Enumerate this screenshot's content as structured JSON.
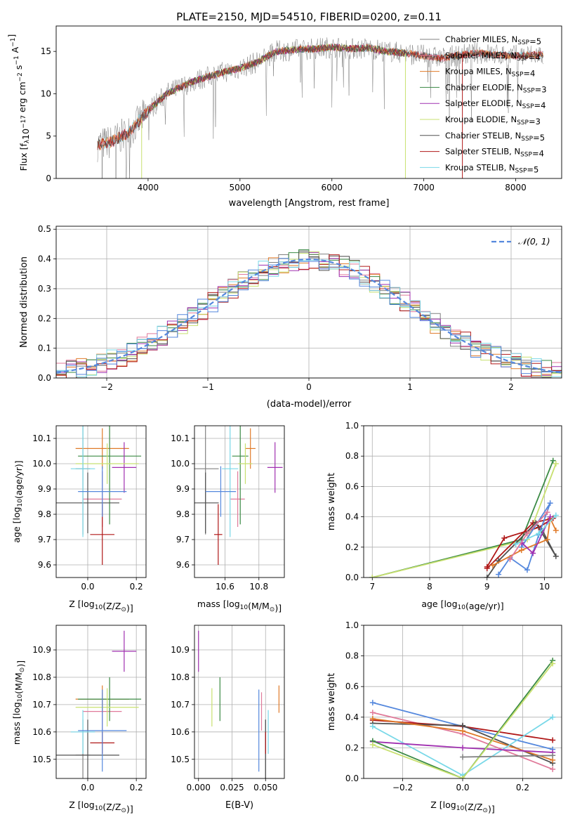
{
  "figure_title": "PLATE=2150, MJD=54510, FIBERID=0200, z=0.11",
  "colors": {
    "Chabrier MILES": "#808080",
    "Salpeter MILES": "#e07a9a",
    "Kroupa MILES": "#e07b2a",
    "Chabrier ELODIE": "#3a8a44",
    "Salpeter ELODIE": "#a030b0",
    "Kroupa ELODIE": "#c8e070",
    "Chabrier STELIB": "#505050",
    "Salpeter STELIB": "#b01818",
    "Kroupa STELIB": "#78d8e8",
    "blue": "#5588dd",
    "grid": "#b0b0b0"
  },
  "chart_data": [
    {
      "id": "spectrum",
      "type": "line",
      "xlabel": "wavelength [Angstrom, rest frame]",
      "ylabel": "Flux [f",
      "ylabel_sub": "λ",
      "ylabel_mid": "10",
      "ylabel_sup": "−17",
      "ylabel_end": " erg cm",
      "ylabel_sup2": "−2",
      "ylabel_end2": " s",
      "ylabel_sup3": "−1",
      "ylabel_end3": " A",
      "ylabel_sup4": "−1",
      "ylabel_close": "]",
      "xlim": [
        3000,
        8500
      ],
      "ylim": [
        0,
        18
      ],
      "xticks": [
        "4000",
        "5000",
        "6000",
        "7000",
        "8000"
      ],
      "xtick_values": [
        4000,
        5000,
        6000,
        7000,
        8000
      ],
      "yticks": [
        "0",
        "5",
        "10",
        "15"
      ],
      "ytick_values": [
        0,
        5,
        10,
        15
      ],
      "continuum": {
        "x": [
          3450,
          3600,
          3800,
          4000,
          4200,
          4500,
          4800,
          5000,
          5200,
          5400,
          5600,
          5800,
          6000,
          6200,
          6400,
          6600,
          6800,
          7000,
          7200,
          7400,
          7600,
          7800,
          8000,
          8200,
          8300
        ],
        "y": [
          4.0,
          4.3,
          5.5,
          8.0,
          10.0,
          11.5,
          12.5,
          13.0,
          13.8,
          15.0,
          15.2,
          15.3,
          15.5,
          15.3,
          15.4,
          15.0,
          14.8,
          14.5,
          14.2,
          14.6,
          14.8,
          14.6,
          14.5,
          14.6,
          14.6
        ]
      },
      "legend": [
        {
          "label": "Chabrier MILES, N",
          "sub": "SSP",
          "tail": "=5"
        },
        {
          "label": "Salpeter MILES, N",
          "sub": "SSP",
          "tail": "=4"
        },
        {
          "label": "Kroupa MILES, N",
          "sub": "SSP",
          "tail": "=4"
        },
        {
          "label": "Chabrier ELODIE, N",
          "sub": "SSP",
          "tail": "=3"
        },
        {
          "label": "Salpeter ELODIE, N",
          "sub": "SSP",
          "tail": "=4"
        },
        {
          "label": "Kroupa ELODIE, N",
          "sub": "SSP",
          "tail": "=3"
        },
        {
          "label": "Chabrier STELIB, N",
          "sub": "SSP",
          "tail": "=5"
        },
        {
          "label": "Salpeter STELIB, N",
          "sub": "SSP",
          "tail": "=4"
        },
        {
          "label": "Kroupa STELIB, N",
          "sub": "SSP",
          "tail": "=5"
        }
      ]
    },
    {
      "id": "residuals",
      "type": "step",
      "xlabel": "(data-model)/error",
      "ylabel": "Normed distribution",
      "xlim": [
        -2.5,
        2.5
      ],
      "ylim": [
        0,
        0.51
      ],
      "xticks": [
        "−2",
        "−1",
        "0",
        "1",
        "2"
      ],
      "xtick_values": [
        -2,
        -1,
        0,
        1,
        2
      ],
      "yticks": [
        "0.0",
        "0.1",
        "0.2",
        "0.3",
        "0.4",
        "0.5"
      ],
      "ytick_values": [
        0,
        0.1,
        0.2,
        0.3,
        0.4,
        0.5
      ],
      "legend_label": "𝒩(0, 1)",
      "bin_width": 0.1,
      "bin_start": -2.5
    },
    {
      "id": "age_vs_Z",
      "type": "errorbar",
      "xlabel": "Z [log",
      "xlabel_sub": "10",
      "xlabel_tail": "(Z/Z",
      "xlabel_sub2": "⊙",
      "xlabel_close": ")]",
      "ylabel": "age  [log",
      "ylabel_sub": "10",
      "ylabel_tail": "(age/yr)]",
      "xlim": [
        -0.13,
        0.24
      ],
      "ylim": [
        9.55,
        10.15
      ],
      "xticks": [
        "0.0",
        "0.2"
      ],
      "xtick_values": [
        0.0,
        0.2
      ],
      "yticks": [
        "9.6",
        "9.7",
        "9.8",
        "9.9",
        "10.0",
        "10.1"
      ],
      "ytick_values": [
        9.6,
        9.7,
        9.8,
        9.9,
        10.0,
        10.1
      ]
    },
    {
      "id": "age_vs_mass",
      "type": "errorbar",
      "xlabel": "mass [log",
      "xlabel_sub": "10",
      "xlabel_tail": "(M/M",
      "xlabel_sub2": "⊙",
      "xlabel_close": ")]",
      "xlim": [
        10.42,
        10.95
      ],
      "ylim": [
        9.55,
        10.15
      ],
      "xticks": [
        "10.6",
        "10.8"
      ],
      "xtick_values": [
        10.6,
        10.8
      ],
      "yticks": [
        "9.6",
        "9.7",
        "9.8",
        "9.9",
        "10.0",
        "10.1"
      ],
      "ytick_values": [
        9.6,
        9.7,
        9.8,
        9.9,
        10.0,
        10.1
      ]
    },
    {
      "id": "weight_vs_age",
      "type": "line",
      "xlabel": "age  [log",
      "xlabel_sub": "10",
      "xlabel_tail": "(age/yr)]",
      "ylabel": "mass weight",
      "xlim": [
        6.85,
        10.3
      ],
      "ylim": [
        0,
        1.0
      ],
      "xticks": [
        "7",
        "8",
        "9",
        "10"
      ],
      "xtick_values": [
        7,
        8,
        9,
        10
      ],
      "yticks": [
        "0.0",
        "0.2",
        "0.4",
        "0.6",
        "0.8",
        "1.0"
      ],
      "ytick_values": [
        0,
        0.2,
        0.4,
        0.6,
        0.8,
        1.0
      ]
    },
    {
      "id": "mass_vs_Z",
      "type": "errorbar",
      "xlabel": "Z [log",
      "xlabel_sub": "10",
      "xlabel_tail": "(Z/Z",
      "xlabel_sub2": "⊙",
      "xlabel_close": ")]",
      "ylabel": "mass [log",
      "ylabel_sub": "10",
      "ylabel_tail": "(M/M",
      "ylabel_sub2": "⊙",
      "ylabel_close": ")]",
      "xlim": [
        -0.13,
        0.24
      ],
      "ylim": [
        10.43,
        10.99
      ],
      "xticks": [
        "0.0",
        "0.2"
      ],
      "xtick_values": [
        0.0,
        0.2
      ],
      "yticks": [
        "10.5",
        "10.6",
        "10.7",
        "10.8",
        "10.9"
      ],
      "ytick_values": [
        10.5,
        10.6,
        10.7,
        10.8,
        10.9
      ]
    },
    {
      "id": "mass_vs_ebv",
      "type": "errorbar",
      "xlabel": "E(B-V)",
      "xlim": [
        -0.003,
        0.064
      ],
      "ylim": [
        10.43,
        10.99
      ],
      "xticks": [
        "0.000",
        "0.025",
        "0.050"
      ],
      "xtick_values": [
        0.0,
        0.025,
        0.05
      ],
      "yticks": [
        "10.5",
        "10.6",
        "10.7",
        "10.8",
        "10.9"
      ],
      "ytick_values": [
        10.5,
        10.6,
        10.7,
        10.8,
        10.9
      ]
    },
    {
      "id": "weight_vs_Z",
      "type": "line",
      "xlabel": "Z [log",
      "xlabel_sub": "10",
      "xlabel_tail": "(Z/Z",
      "xlabel_sub2": "⊙",
      "xlabel_close": ")]",
      "ylabel": "mass weight",
      "xlim": [
        -0.33,
        0.33
      ],
      "ylim": [
        0,
        1.0
      ],
      "xticks": [
        "−0.2",
        "0.0",
        "0.2"
      ],
      "xtick_values": [
        -0.2,
        0.0,
        0.2
      ],
      "yticks": [
        "0.0",
        "0.2",
        "0.4",
        "0.6",
        "0.8",
        "1.0"
      ],
      "ytick_values": [
        0,
        0.2,
        0.4,
        0.6,
        0.8,
        1.0
      ]
    }
  ],
  "ssp_fits": [
    {
      "model": "Chabrier MILES",
      "Z": [
        -0.02,
        0.03
      ],
      "age": [
        9.98,
        0.26
      ],
      "mass": [
        10.515,
        0.13
      ],
      "mass_err_Z": [
        0.56,
        10.555
      ],
      "ebv": 0.05
    },
    {
      "model": "Salpeter MILES",
      "Z": [
        0.06,
        0.08
      ],
      "age": [
        9.86,
        0.11
      ],
      "mass": [
        10.675,
        0.07
      ],
      "ebv": 0.047
    },
    {
      "model": "Kroupa MILES",
      "Z": [
        0.06,
        0.11
      ],
      "age": [
        10.06,
        0.08
      ],
      "mass": [
        10.72,
        0.05
      ],
      "ebv": 0.06
    },
    {
      "model": "Chabrier ELODIE",
      "Z": [
        0.09,
        0.13
      ],
      "age": [
        10.03,
        0.27
      ],
      "mass": [
        10.72,
        0.08
      ],
      "ebv": 0.016
    },
    {
      "model": "Salpeter ELODIE",
      "Z": [
        0.15,
        0.05
      ],
      "age": [
        9.985,
        0.1
      ],
      "mass": [
        10.895,
        0.075
      ],
      "ebv": 0.0
    },
    {
      "model": "Kroupa ELODIE",
      "Z": [
        0.08,
        0.13
      ],
      "age": [
        10.0,
        0.08
      ],
      "mass": [
        10.69,
        0.07
      ],
      "ebv": 0.01
    },
    {
      "model": "Chabrier STELIB",
      "Z": [
        0.0,
        0.13
      ],
      "age": [
        9.845,
        0.12
      ],
      "mass": [
        10.515,
        0.13
      ],
      "ebv": 0.05
    },
    {
      "model": "Salpeter STELIB",
      "Z": [
        0.06,
        0.05
      ],
      "age": [
        9.72,
        0.12
      ],
      "mass": [
        10.56,
        0.04
      ],
      "ebv": 0.05
    },
    {
      "model": "Kroupa STELIB",
      "Z": [
        -0.02,
        0.05
      ],
      "age": [
        9.98,
        0.27
      ],
      "mass": [
        10.6,
        0.08
      ],
      "ebv": 0.052
    },
    {
      "model": "blue",
      "Z": [
        0.06,
        0.1
      ],
      "age": [
        9.89,
        0.1
      ],
      "mass": [
        10.605,
        0.15
      ],
      "ebv": 0.045
    }
  ],
  "weights_age": [
    {
      "model": "Chabrier ELODIE",
      "points": [
        [
          7.0,
          0.0
        ],
        [
          9.6,
          0.25
        ],
        [
          10.15,
          0.77
        ]
      ]
    },
    {
      "model": "Kroupa ELODIE",
      "points": [
        [
          7.0,
          0.0
        ],
        [
          9.7,
          0.25
        ],
        [
          10.2,
          0.75
        ]
      ]
    },
    {
      "model": "Salpeter STELIB",
      "points": [
        [
          9.0,
          0.07
        ],
        [
          9.3,
          0.26
        ],
        [
          9.9,
          0.33
        ],
        [
          10.15,
          0.39
        ],
        [
          9.8,
          0.36
        ],
        [
          9.0,
          0.06
        ]
      ]
    },
    {
      "model": "Chabrier STELIB",
      "points": [
        [
          9.0,
          0.0
        ],
        [
          9.2,
          0.11
        ],
        [
          9.85,
          0.36
        ],
        [
          10.2,
          0.14
        ],
        [
          9.95,
          0.32
        ]
      ]
    },
    {
      "model": "blue",
      "points": [
        [
          9.2,
          0.02
        ],
        [
          9.4,
          0.13
        ],
        [
          9.7,
          0.05
        ],
        [
          9.9,
          0.28
        ],
        [
          10.1,
          0.49
        ],
        [
          9.6,
          0.2
        ]
      ]
    },
    {
      "model": "Kroupa MILES",
      "points": [
        [
          9.1,
          0.08
        ],
        [
          9.6,
          0.18
        ],
        [
          10.05,
          0.25
        ],
        [
          10.1,
          0.39
        ],
        [
          10.2,
          0.31
        ]
      ]
    },
    {
      "model": "Salpeter ELODIE",
      "points": [
        [
          9.6,
          0.23
        ],
        [
          9.8,
          0.16
        ],
        [
          10.1,
          0.4
        ]
      ]
    },
    {
      "model": "Kroupa STELIB",
      "points": [
        [
          9.5,
          0.22
        ],
        [
          9.9,
          0.29
        ],
        [
          10.2,
          0.41
        ]
      ]
    },
    {
      "model": "Salpeter MILES",
      "points": [
        [
          9.4,
          0.12
        ],
        [
          9.7,
          0.29
        ],
        [
          10.05,
          0.43
        ]
      ]
    }
  ],
  "weights_Z": [
    {
      "model": "blue",
      "points": [
        [
          -0.3,
          0.495
        ],
        [
          0.0,
          0.34
        ],
        [
          0.3,
          0.19
        ]
      ]
    },
    {
      "model": "Salpeter MILES",
      "points": [
        [
          -0.3,
          0.43
        ],
        [
          0.0,
          0.29
        ],
        [
          0.3,
          0.06
        ]
      ]
    },
    {
      "model": "Salpeter STELIB",
      "points": [
        [
          -0.3,
          0.38
        ],
        [
          0.0,
          0.34
        ],
        [
          0.3,
          0.25
        ]
      ]
    },
    {
      "model": "Chabrier STELIB",
      "points": [
        [
          -0.3,
          0.36
        ],
        [
          0.0,
          0.345
        ],
        [
          0.3,
          0.1
        ]
      ]
    },
    {
      "model": "Kroupa MILES",
      "points": [
        [
          -0.3,
          0.39
        ],
        [
          0.0,
          0.31
        ],
        [
          0.3,
          0.12
        ]
      ]
    },
    {
      "model": "Kroupa STELIB",
      "points": [
        [
          -0.3,
          0.34
        ],
        [
          0.0,
          0.02
        ],
        [
          0.3,
          0.4
        ]
      ]
    },
    {
      "model": "Salpeter ELODIE",
      "points": [
        [
          -0.3,
          0.24
        ],
        [
          0.0,
          0.2
        ],
        [
          0.3,
          0.17
        ]
      ]
    },
    {
      "model": "Chabrier ELODIE",
      "points": [
        [
          -0.3,
          0.245
        ],
        [
          0.0,
          0.0
        ],
        [
          0.3,
          0.77
        ]
      ]
    },
    {
      "model": "Kroupa ELODIE",
      "points": [
        [
          -0.3,
          0.22
        ],
        [
          0.0,
          0.0
        ],
        [
          0.3,
          0.75
        ]
      ]
    },
    {
      "model": "Chabrier MILES",
      "points": [
        [
          0.0,
          0.14
        ],
        [
          0.3,
          0.15
        ]
      ]
    }
  ]
}
